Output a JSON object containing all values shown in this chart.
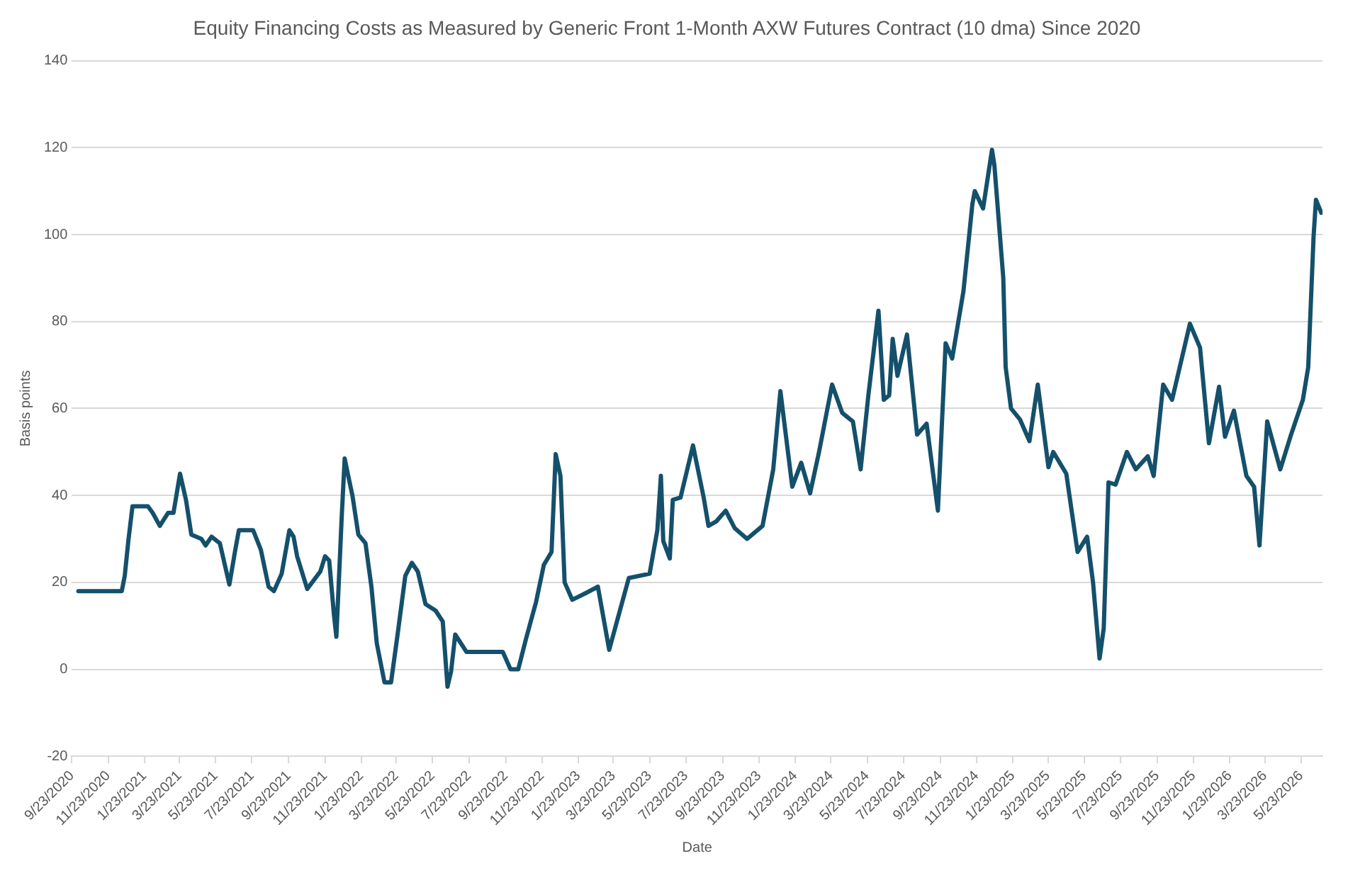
{
  "chart_data": {
    "type": "line",
    "title": "Equity Financing Costs as Measured by Generic Front 1-Month AXW Futures Contract (10 dma) Since 2020",
    "xlabel": "Date",
    "ylabel": "Basis points",
    "x": [
      "2020-10-04",
      "2020-12-16",
      "2020-12-21",
      "2020-12-27",
      "2021-01-03",
      "2021-01-29",
      "2021-02-06",
      "2021-02-18",
      "2021-03-04",
      "2021-03-13",
      "2021-03-24",
      "2021-04-03",
      "2021-04-12",
      "2021-04-29",
      "2021-05-06",
      "2021-05-16",
      "2021-05-30",
      "2021-06-15",
      "2021-06-25",
      "2021-07-01",
      "2021-07-25",
      "2021-08-07",
      "2021-08-20",
      "2021-08-29",
      "2021-09-11",
      "2021-09-24",
      "2021-10-01",
      "2021-10-07",
      "2021-10-24",
      "2021-11-15",
      "2021-11-23",
      "2021-11-30",
      "2021-12-08",
      "2021-12-12",
      "2021-12-21",
      "2021-12-26",
      "2022-01-01",
      "2022-01-08",
      "2022-01-18",
      "2022-01-30",
      "2022-02-09",
      "2022-02-18",
      "2022-03-03",
      "2022-03-14",
      "2022-03-25",
      "2022-04-07",
      "2022-04-18",
      "2022-04-28",
      "2022-05-11",
      "2022-05-28",
      "2022-06-09",
      "2022-06-17",
      "2022-06-23",
      "2022-06-30",
      "2022-07-19",
      "2022-09-18",
      "2022-10-01",
      "2022-10-14",
      "2022-10-27",
      "2022-11-13",
      "2022-11-26",
      "2022-12-09",
      "2022-12-16",
      "2022-12-24",
      "2022-12-31",
      "2023-01-13",
      "2023-02-04",
      "2023-02-25",
      "2023-03-16",
      "2023-04-01",
      "2023-04-18",
      "2023-05-23",
      "2023-06-05",
      "2023-06-11",
      "2023-06-15",
      "2023-06-26",
      "2023-07-01",
      "2023-07-14",
      "2023-08-04",
      "2023-08-22",
      "2023-08-30",
      "2023-09-12",
      "2023-09-28",
      "2023-10-13",
      "2023-11-03",
      "2023-11-29",
      "2023-12-17",
      "2023-12-29",
      "2024-01-18",
      "2024-02-02",
      "2024-02-17",
      "2024-03-03",
      "2024-03-25",
      "2024-04-11",
      "2024-04-29",
      "2024-05-12",
      "2024-05-25",
      "2024-06-11",
      "2024-06-20",
      "2024-06-29",
      "2024-07-05",
      "2024-07-13",
      "2024-07-29",
      "2024-08-15",
      "2024-08-31",
      "2024-09-19",
      "2024-10-02",
      "2024-10-13",
      "2024-11-01",
      "2024-11-16",
      "2024-11-20",
      "2024-12-04",
      "2024-12-19",
      "2024-12-23",
      "2025-01-07",
      "2025-01-11",
      "2025-01-20",
      "2025-02-04",
      "2025-02-20",
      "2025-03-06",
      "2025-03-24",
      "2025-04-01",
      "2025-04-23",
      "2025-05-12",
      "2025-05-28",
      "2025-06-07",
      "2025-06-18",
      "2025-06-25",
      "2025-07-03",
      "2025-07-15",
      "2025-08-03",
      "2025-08-18",
      "2025-09-07",
      "2025-09-17",
      "2025-10-03",
      "2025-10-18",
      "2025-11-17",
      "2025-12-04",
      "2025-12-19",
      "2026-01-05",
      "2026-01-15",
      "2026-01-30",
      "2026-02-20",
      "2026-03-05",
      "2026-03-14",
      "2026-03-27",
      "2026-04-18",
      "2026-05-05",
      "2026-05-26",
      "2026-06-04",
      "2026-06-13",
      "2026-06-17",
      "2026-06-26"
    ],
    "series": [
      {
        "color": "#14506b",
        "values": [
          18,
          18,
          21.5,
          29.5,
          37.5,
          37.5,
          36,
          33,
          36,
          36,
          45,
          39,
          31,
          30,
          28.5,
          30.5,
          29,
          19.5,
          27.5,
          32,
          32,
          27.5,
          19,
          18,
          22,
          32,
          30.5,
          26,
          18.5,
          22.5,
          26,
          25,
          12.5,
          7.5,
          35,
          48.5,
          44.5,
          40,
          31,
          29,
          19,
          6,
          -3,
          -3,
          8,
          21.5,
          24.5,
          22.5,
          15,
          13.5,
          11,
          -4,
          -0.5,
          8,
          4,
          4,
          0,
          0,
          7,
          15.5,
          24,
          27,
          49.5,
          44.5,
          20,
          16,
          17.5,
          19,
          4.5,
          12.5,
          21,
          22,
          32,
          44.5,
          29.5,
          25.5,
          39,
          39.5,
          51.5,
          39.5,
          33,
          34,
          36.5,
          32.5,
          30,
          33,
          46,
          64,
          42,
          47.5,
          40.5,
          50,
          65.5,
          59,
          57,
          46,
          63,
          82.5,
          62,
          63,
          76,
          67.5,
          77,
          54,
          56.5,
          36.5,
          75,
          71.5,
          87,
          107,
          110,
          106,
          119.5,
          116,
          90,
          69.5,
          60,
          57.5,
          52.5,
          65.5,
          46.5,
          50,
          45,
          27,
          30.5,
          20,
          2.5,
          9.5,
          43,
          42.5,
          50,
          46,
          49,
          44.5,
          65.5,
          62,
          79.5,
          74,
          52,
          65,
          53.5,
          59.5,
          44.5,
          42,
          28.5,
          57,
          46,
          53.5,
          62,
          69.5,
          99.5,
          108,
          105
        ]
      }
    ],
    "xlim": [
      "2020-09-23",
      "2026-06-28"
    ],
    "xticks": [
      {
        "value": "2020-09-23",
        "label": "9/23/2020"
      },
      {
        "value": "2020-11-23",
        "label": "11/23/2020"
      },
      {
        "value": "2021-01-23",
        "label": "1/23/2021"
      },
      {
        "value": "2021-03-23",
        "label": "3/23/2021"
      },
      {
        "value": "2021-05-23",
        "label": "5/23/2021"
      },
      {
        "value": "2021-07-23",
        "label": "7/23/2021"
      },
      {
        "value": "2021-09-23",
        "label": "9/23/2021"
      },
      {
        "value": "2021-11-23",
        "label": "11/23/2021"
      },
      {
        "value": "2022-01-23",
        "label": "1/23/2022"
      },
      {
        "value": "2022-03-23",
        "label": "3/23/2022"
      },
      {
        "value": "2022-05-23",
        "label": "5/23/2022"
      },
      {
        "value": "2022-07-23",
        "label": "7/23/2022"
      },
      {
        "value": "2022-09-23",
        "label": "9/23/2022"
      },
      {
        "value": "2022-11-23",
        "label": "11/23/2022"
      },
      {
        "value": "2023-01-23",
        "label": "1/23/2023"
      },
      {
        "value": "2023-03-23",
        "label": "3/23/2023"
      },
      {
        "value": "2023-05-23",
        "label": "5/23/2023"
      },
      {
        "value": "2023-07-23",
        "label": "7/23/2023"
      },
      {
        "value": "2023-09-23",
        "label": "9/23/2023"
      },
      {
        "value": "2023-11-23",
        "label": "11/23/2023"
      },
      {
        "value": "2024-01-23",
        "label": "1/23/2024"
      },
      {
        "value": "2024-03-23",
        "label": "3/23/2024"
      },
      {
        "value": "2024-05-23",
        "label": "5/23/2024"
      },
      {
        "value": "2024-07-23",
        "label": "7/23/2024"
      },
      {
        "value": "2024-09-23",
        "label": "9/23/2024"
      },
      {
        "value": "2024-11-23",
        "label": "11/23/2024"
      },
      {
        "value": "2025-01-23",
        "label": "1/23/2025"
      },
      {
        "value": "2025-03-23",
        "label": "3/23/2025"
      },
      {
        "value": "2025-05-23",
        "label": "5/23/2025"
      },
      {
        "value": "2025-07-23",
        "label": "7/23/2025"
      },
      {
        "value": "2025-09-23",
        "label": "9/23/2025"
      },
      {
        "value": "2025-11-23",
        "label": "11/23/2025"
      },
      {
        "value": "2026-01-23",
        "label": "1/23/2026"
      },
      {
        "value": "2026-03-23",
        "label": "3/23/2026"
      },
      {
        "value": "2026-05-23",
        "label": "5/23/2026"
      }
    ],
    "ylim": [
      -20,
      140
    ],
    "yticks": [
      -20,
      0,
      20,
      40,
      60,
      80,
      100,
      120,
      140
    ],
    "grid": "y",
    "legend": false,
    "marker": "none",
    "line_style": "solid"
  }
}
